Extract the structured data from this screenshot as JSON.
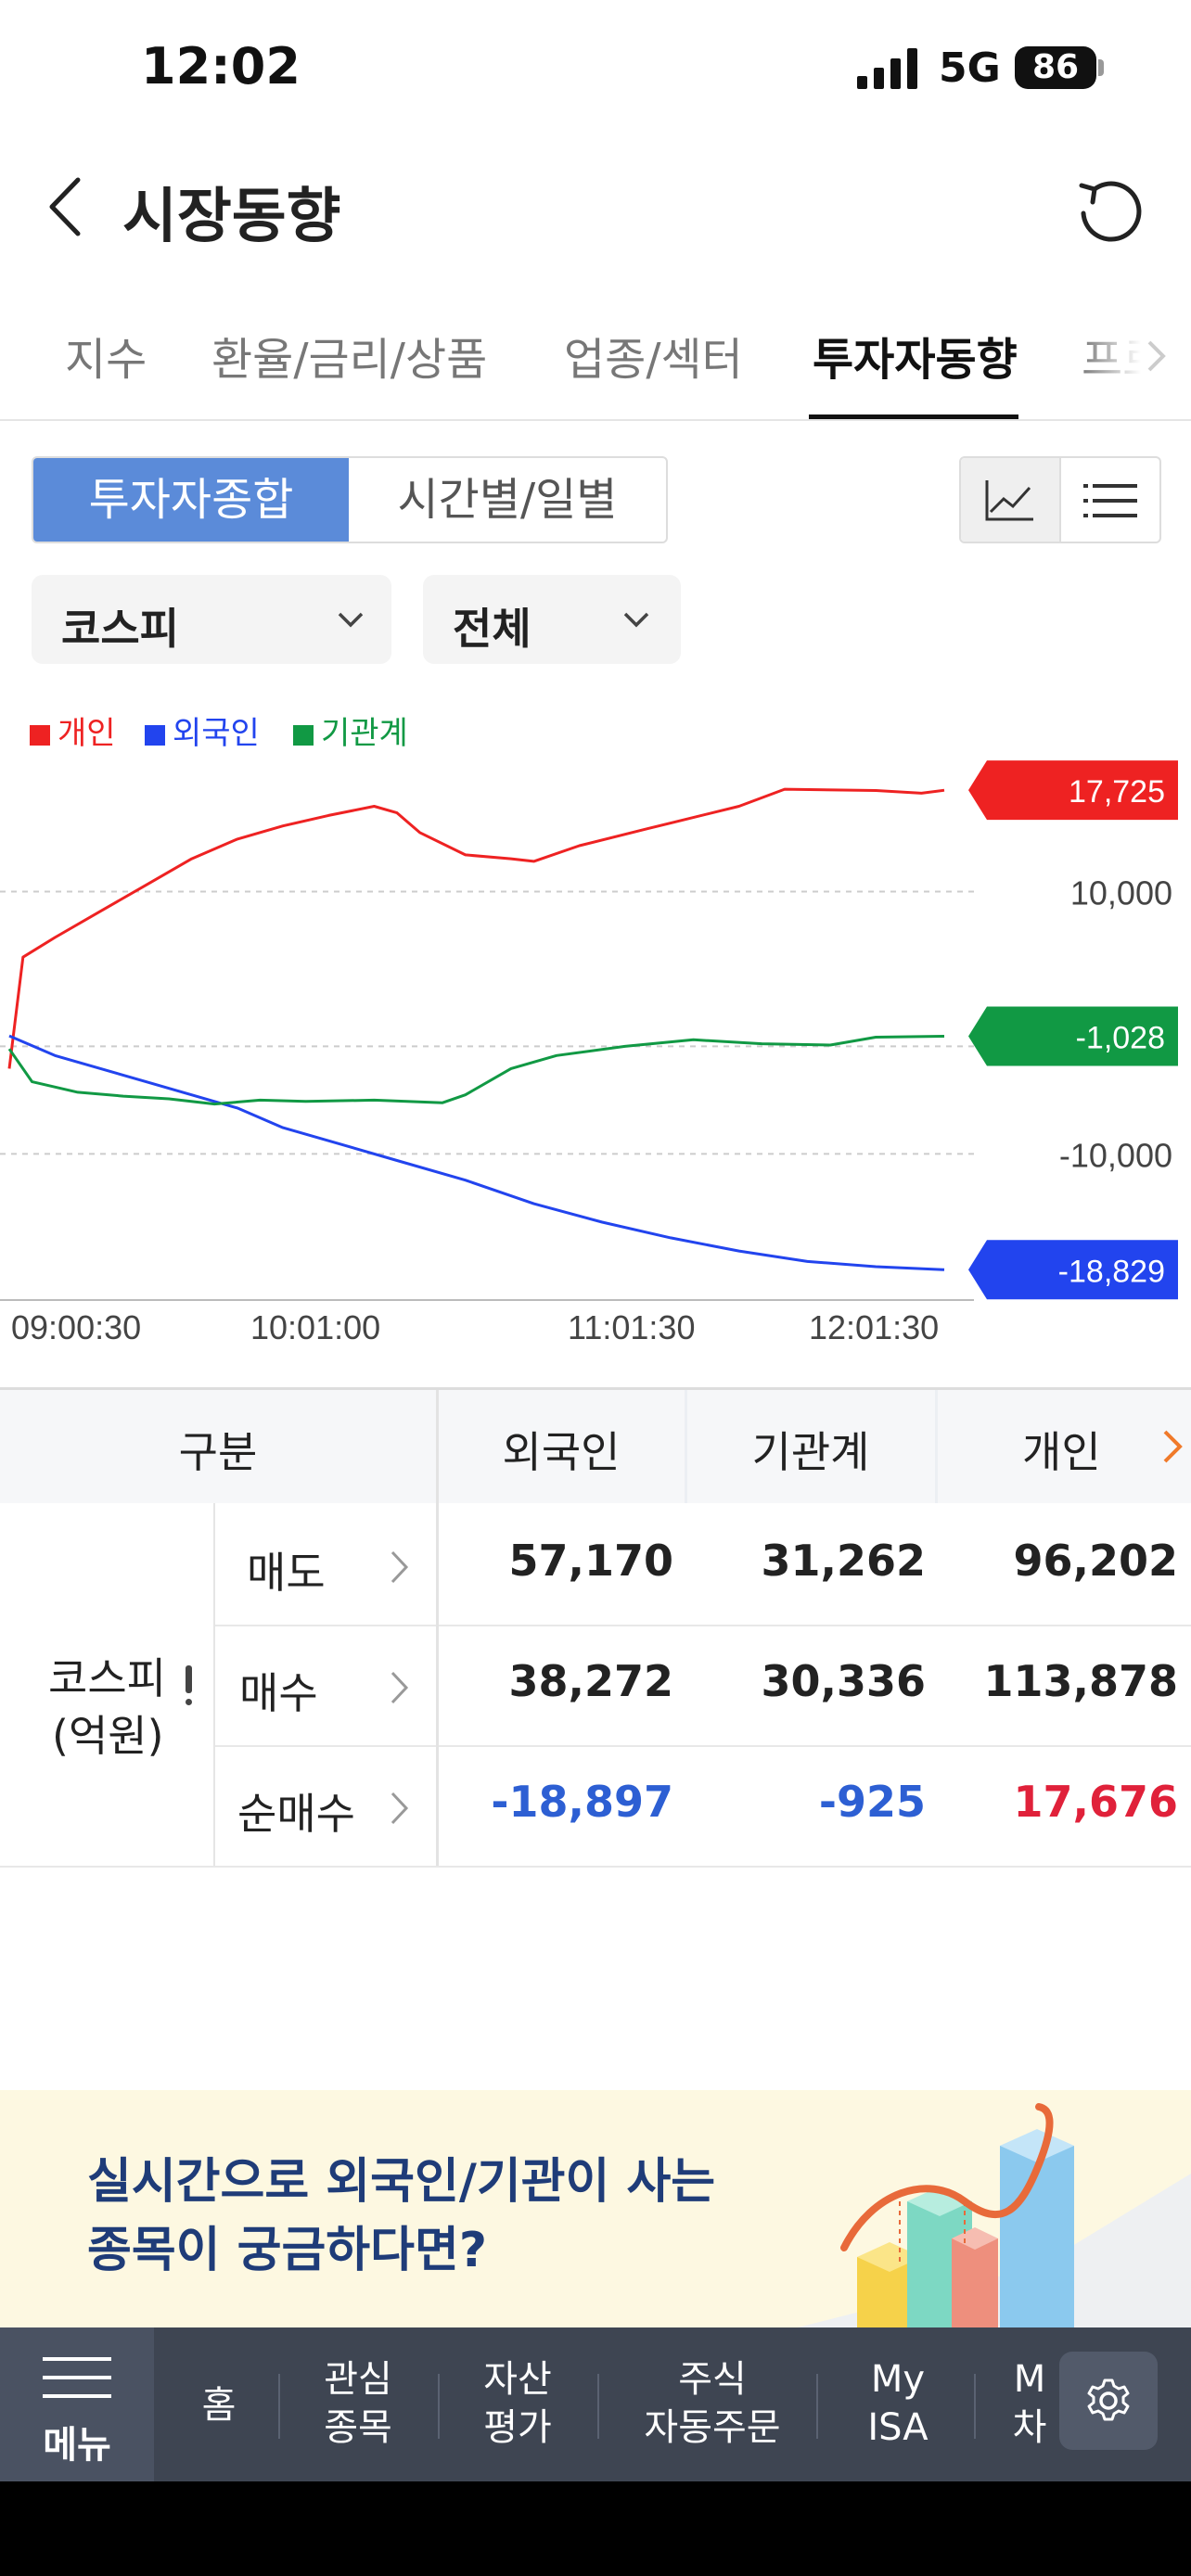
{
  "status_bar": {
    "time": "12:02",
    "network": "5G",
    "battery": "86"
  },
  "header": {
    "title": "시장동향"
  },
  "tabs": [
    {
      "label": "지수",
      "active": false
    },
    {
      "label": "환율/금리/상품",
      "active": false
    },
    {
      "label": "업종/섹터",
      "active": false
    },
    {
      "label": "투자자동향",
      "active": true
    },
    {
      "label": "프로",
      "active": false
    }
  ],
  "segment": {
    "left": "투자자종합",
    "right": "시간별/일별"
  },
  "filters": {
    "market": "코스피",
    "scope": "전체"
  },
  "chart_data": {
    "type": "line",
    "legend": [
      "개인",
      "외국인",
      "기관계"
    ],
    "colors": {
      "개인": "#ee2222",
      "외국인": "#2244ee",
      "기관계": "#119944"
    },
    "y_ticks": [
      "10,000",
      "-10,000"
    ],
    "x_ticks": [
      "09:00:30",
      "10:01:00",
      "11:01:30",
      "12:01:30"
    ],
    "ylim": [
      -21000,
      20000
    ],
    "series": [
      {
        "name": "개인",
        "end_label": "17,725",
        "points": [
          [
            0,
            -3500
          ],
          [
            3,
            5000
          ],
          [
            10,
            6500
          ],
          [
            20,
            8500
          ],
          [
            30,
            10500
          ],
          [
            40,
            12500
          ],
          [
            50,
            14000
          ],
          [
            60,
            15000
          ],
          [
            70,
            15800
          ],
          [
            80,
            16500
          ],
          [
            85,
            16000
          ],
          [
            90,
            14500
          ],
          [
            100,
            12800
          ],
          [
            110,
            12500
          ],
          [
            115,
            12300
          ],
          [
            125,
            13500
          ],
          [
            140,
            14800
          ],
          [
            160,
            16500
          ],
          [
            170,
            17800
          ],
          [
            190,
            17700
          ],
          [
            200,
            17500
          ],
          [
            205,
            17725
          ]
        ]
      },
      {
        "name": "외국인",
        "end_label": "-18,829",
        "points": [
          [
            0,
            -1000
          ],
          [
            10,
            -2500
          ],
          [
            30,
            -4500
          ],
          [
            50,
            -6500
          ],
          [
            60,
            -8000
          ],
          [
            70,
            -9000
          ],
          [
            85,
            -10500
          ],
          [
            100,
            -12000
          ],
          [
            115,
            -13800
          ],
          [
            130,
            -15200
          ],
          [
            145,
            -16400
          ],
          [
            160,
            -17400
          ],
          [
            175,
            -18200
          ],
          [
            190,
            -18600
          ],
          [
            205,
            -18829
          ]
        ]
      },
      {
        "name": "기관계",
        "end_label": "-1,028",
        "points": [
          [
            0,
            -2000
          ],
          [
            5,
            -4500
          ],
          [
            15,
            -5300
          ],
          [
            25,
            -5600
          ],
          [
            35,
            -5800
          ],
          [
            45,
            -6200
          ],
          [
            55,
            -5900
          ],
          [
            65,
            -6000
          ],
          [
            80,
            -5900
          ],
          [
            95,
            -6100
          ],
          [
            100,
            -5500
          ],
          [
            110,
            -3500
          ],
          [
            120,
            -2500
          ],
          [
            135,
            -1800
          ],
          [
            150,
            -1300
          ],
          [
            165,
            -1600
          ],
          [
            180,
            -1700
          ],
          [
            190,
            -1100
          ],
          [
            205,
            -1028
          ]
        ]
      }
    ]
  },
  "table": {
    "headers": [
      "구분",
      "외국인",
      "기관계",
      "개인"
    ],
    "group": "코스피",
    "unit": "(억원)",
    "rows": [
      {
        "label": "매도",
        "values": [
          "57,170",
          "31,262",
          "96,202"
        ],
        "colors": [
          "#222222",
          "#222222",
          "#222222"
        ]
      },
      {
        "label": "매수",
        "values": [
          "38,272",
          "30,336",
          "113,878"
        ],
        "colors": [
          "#222222",
          "#222222",
          "#222222"
        ]
      },
      {
        "label": "순매수",
        "values": [
          "-18,897",
          "-925",
          "17,676"
        ],
        "colors": [
          "#2d5fd3",
          "#2d5fd3",
          "#e0213a"
        ]
      }
    ]
  },
  "banner": {
    "line1": "실시간으로 외국인/기관이 사는",
    "line2": "종목이 궁금하다면?"
  },
  "bottom_nav": {
    "menu": "메뉴",
    "items": [
      {
        "l1": "홈",
        "l2": ""
      },
      {
        "l1": "관심",
        "l2": "종목"
      },
      {
        "l1": "자산",
        "l2": "평가"
      },
      {
        "l1": "주식",
        "l2": "자동주문"
      },
      {
        "l1": "My",
        "l2": "ISA"
      },
      {
        "l1": "M",
        "l2": "차"
      }
    ]
  }
}
